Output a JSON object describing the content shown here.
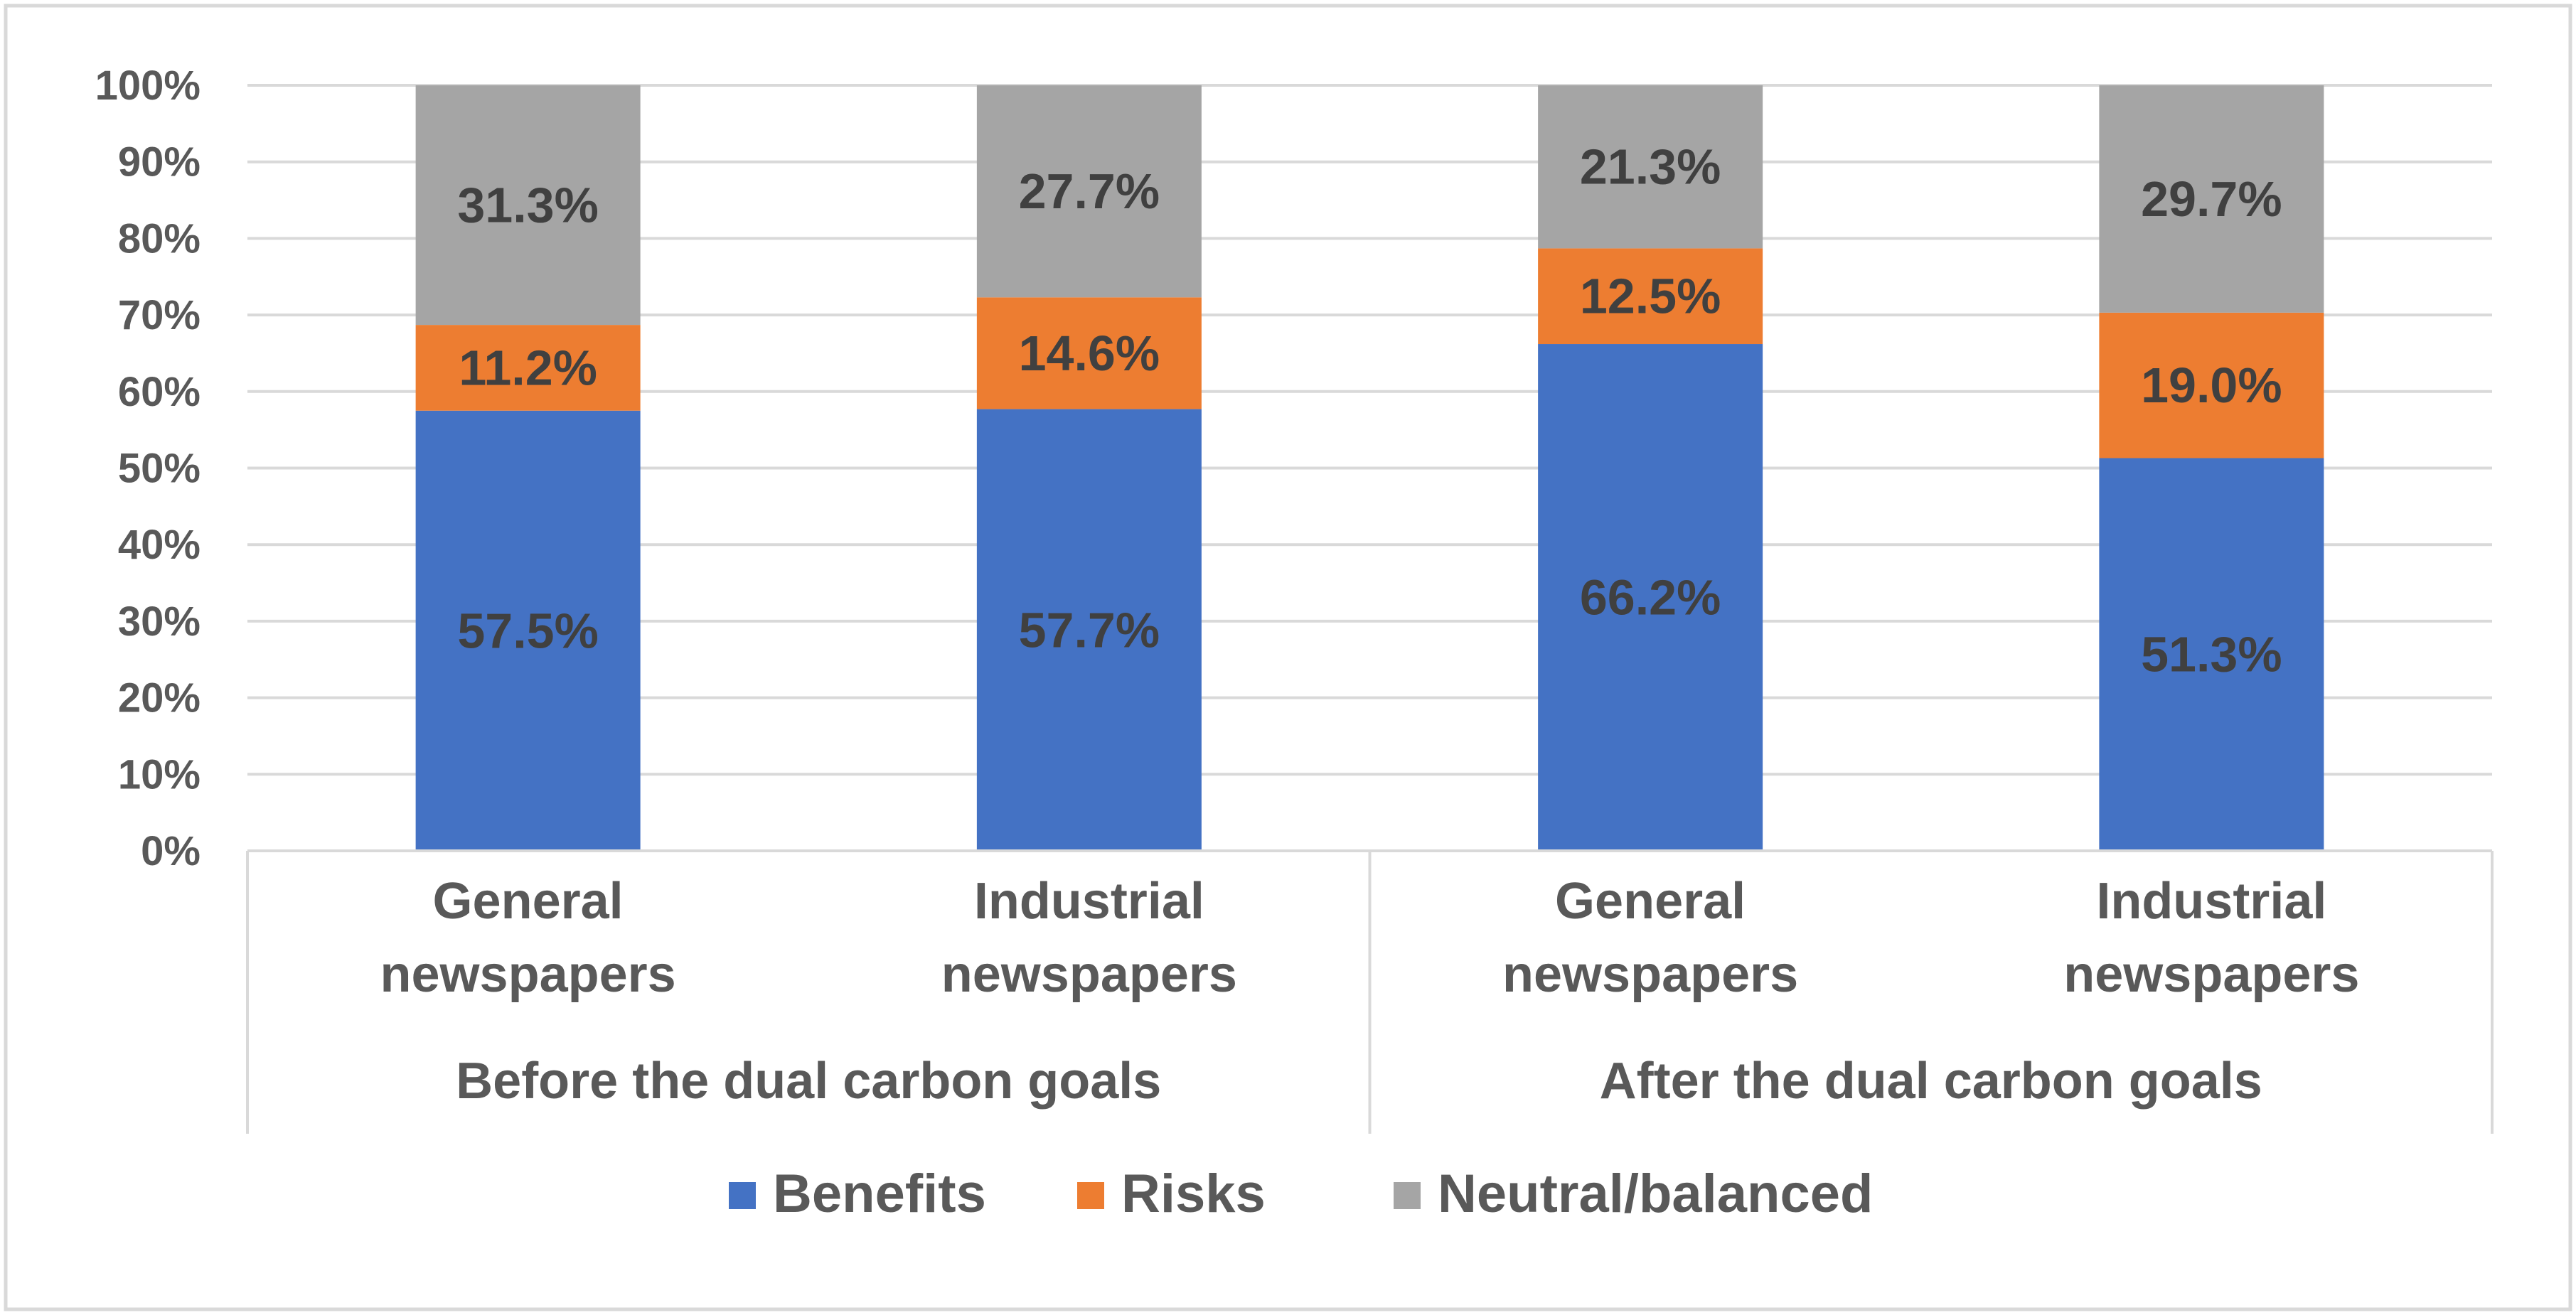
{
  "chart_data": {
    "type": "bar",
    "stacked": true,
    "title": "",
    "xlabel": "",
    "ylabel": "",
    "ylim": [
      0,
      100
    ],
    "ytick_step": 10,
    "ytick_suffix": "%",
    "categories": [
      {
        "label_lines": [
          "General",
          "newspapers"
        ],
        "group": 0
      },
      {
        "label_lines": [
          "Industrial",
          "newspapers"
        ],
        "group": 0
      },
      {
        "label_lines": [
          "General",
          "newspapers"
        ],
        "group": 1
      },
      {
        "label_lines": [
          "Industrial",
          "newspapers"
        ],
        "group": 1
      }
    ],
    "groups": [
      "Before the dual carbon goals",
      "After the dual carbon goals"
    ],
    "series": [
      {
        "name": "Benefits",
        "color": "#4472C4",
        "values": [
          57.5,
          57.7,
          66.2,
          51.3
        ],
        "labels": [
          "57.5%",
          "57.7%",
          "66.2%",
          "51.3%"
        ]
      },
      {
        "name": "Risks",
        "color": "#ED7D31",
        "values": [
          11.2,
          14.6,
          12.5,
          19.0
        ],
        "labels": [
          "11.2%",
          "14.6%",
          "12.5%",
          "19.0%"
        ]
      },
      {
        "name": "Neutral/balanced",
        "color": "#A5A5A5",
        "values": [
          31.3,
          27.7,
          21.3,
          29.7
        ],
        "labels": [
          "31.3%",
          "27.7%",
          "21.3%",
          "29.7%"
        ]
      }
    ],
    "grid": true,
    "legend_position": "bottom"
  }
}
